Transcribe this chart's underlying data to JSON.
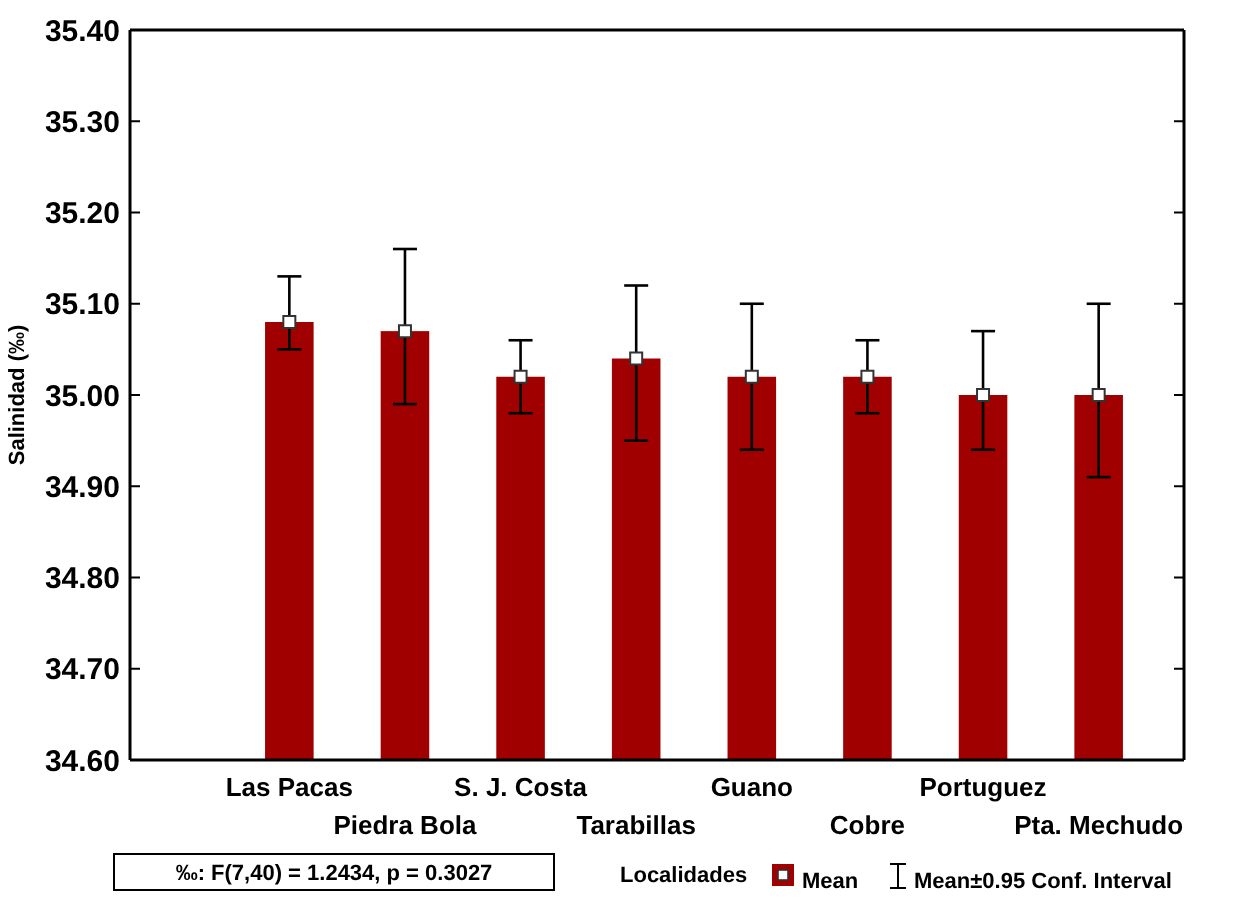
{
  "chart_data": {
    "type": "bar",
    "ylabel": "Salinidad (‰)",
    "legend_title": "Localidades",
    "legend": "bottom",
    "marker": "square",
    "grid": false,
    "categories": [
      "Las Pacas",
      "Piedra Bola",
      "S. J. Costa",
      "Tarabillas",
      "Guano",
      "Cobre",
      "Portuguez",
      "Pta. Mechudo"
    ],
    "series": [
      {
        "name": "Mean",
        "color": "#a00000",
        "values": [
          35.08,
          35.07,
          35.02,
          35.04,
          35.02,
          35.02,
          35.0,
          35.0
        ],
        "errors": [
          [
            35.05,
            35.13
          ],
          [
            34.99,
            35.16
          ],
          [
            34.98,
            35.06
          ],
          [
            34.95,
            35.12
          ],
          [
            34.94,
            35.1
          ],
          [
            34.98,
            35.06
          ],
          [
            34.94,
            35.07
          ],
          [
            34.91,
            35.1
          ]
        ]
      }
    ],
    "ylim": [
      34.6,
      35.4
    ],
    "yticks": [
      {
        "value": 34.6,
        "label": "34.60"
      },
      {
        "value": 34.7,
        "label": "34.70"
      },
      {
        "value": 34.8,
        "label": "34.80"
      },
      {
        "value": 34.9,
        "label": "34.90"
      },
      {
        "value": 35.0,
        "label": "35.00"
      },
      {
        "value": 35.1,
        "label": "35.10"
      },
      {
        "value": 35.2,
        "label": "35.20"
      },
      {
        "value": 35.3,
        "label": "35.30"
      },
      {
        "value": 35.4,
        "label": "35.40"
      }
    ],
    "annotations": [
      "‰:   F(7,40) = 1.2434, p = 0.3027",
      "Mean±0.95 Conf. Interval"
    ]
  }
}
